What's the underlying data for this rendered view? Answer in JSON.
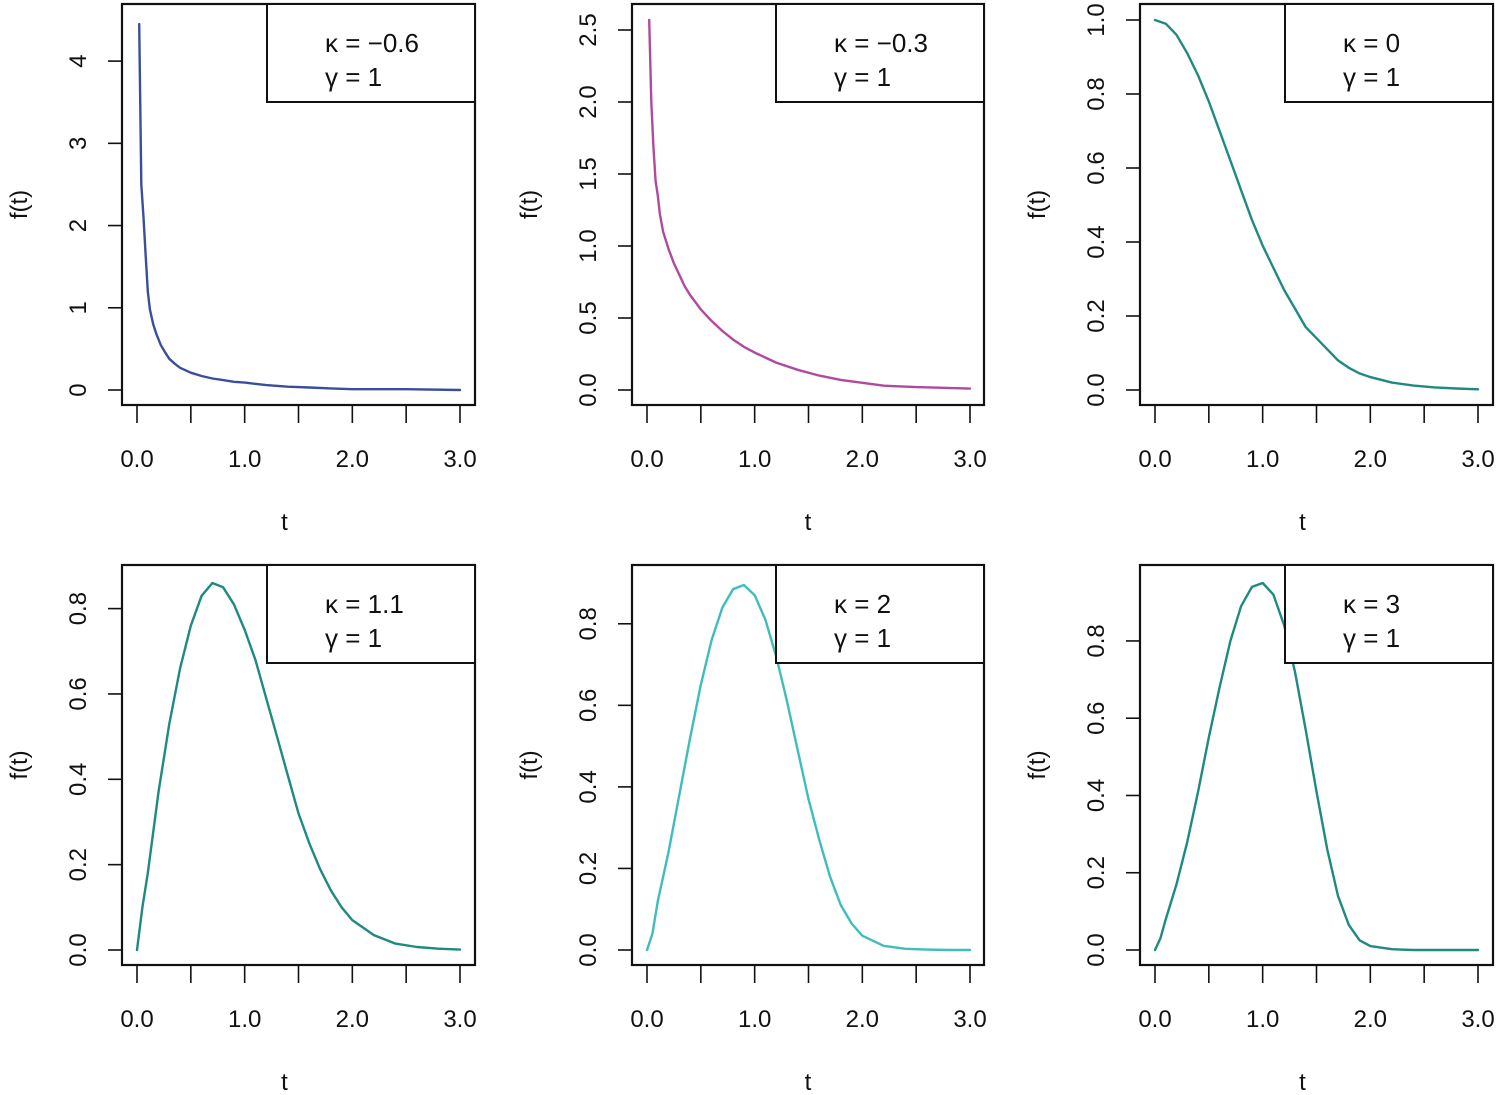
{
  "chart_data": [
    {
      "type": "line",
      "xlabel": "t",
      "ylabel": "f(t)",
      "xlim": [
        0,
        3
      ],
      "ylim": [
        0,
        4.5
      ],
      "xticks": [
        "0.0",
        "1.0",
        "2.0",
        "3.0"
      ],
      "yticks": [
        "0",
        "1",
        "2",
        "3",
        "4"
      ],
      "legend": [
        "κ = −0.6",
        "γ = 1"
      ],
      "legend_position": "top-right",
      "color": "#3a4f9c",
      "series": [
        {
          "x": [
            0.02,
            0.04,
            0.06,
            0.08,
            0.1,
            0.12,
            0.15,
            0.18,
            0.22,
            0.26,
            0.3,
            0.35,
            0.4,
            0.5,
            0.6,
            0.7,
            0.8,
            0.9,
            1.0,
            1.2,
            1.4,
            1.6,
            1.8,
            2.0,
            2.5,
            3.0
          ],
          "y": [
            4.45,
            2.5,
            2.1,
            1.65,
            1.2,
            0.98,
            0.8,
            0.68,
            0.55,
            0.46,
            0.38,
            0.32,
            0.27,
            0.21,
            0.17,
            0.14,
            0.12,
            0.1,
            0.09,
            0.06,
            0.04,
            0.03,
            0.02,
            0.01,
            0.01,
            0.0
          ]
        }
      ]
    },
    {
      "type": "line",
      "xlabel": "t",
      "ylabel": "f(t)",
      "xlim": [
        0,
        3
      ],
      "ylim": [
        0,
        2.5
      ],
      "xticks": [
        "0.0",
        "1.0",
        "2.0",
        "3.0"
      ],
      "yticks": [
        "0.0",
        "0.5",
        "1.0",
        "1.5",
        "2.0",
        "2.5"
      ],
      "legend": [
        "κ = −0.3",
        "γ = 1"
      ],
      "legend_position": "top-right",
      "color": "#b04a9e",
      "series": [
        {
          "x": [
            0.02,
            0.04,
            0.06,
            0.08,
            0.1,
            0.12,
            0.15,
            0.2,
            0.25,
            0.3,
            0.35,
            0.4,
            0.5,
            0.6,
            0.7,
            0.8,
            0.9,
            1.0,
            1.2,
            1.4,
            1.6,
            1.8,
            2.0,
            2.2,
            2.5,
            3.0
          ],
          "y": [
            2.57,
            2.0,
            1.68,
            1.45,
            1.35,
            1.22,
            1.1,
            0.98,
            0.88,
            0.8,
            0.72,
            0.66,
            0.56,
            0.48,
            0.41,
            0.35,
            0.3,
            0.26,
            0.19,
            0.14,
            0.1,
            0.07,
            0.05,
            0.03,
            0.02,
            0.01
          ]
        }
      ]
    },
    {
      "type": "line",
      "xlabel": "t",
      "ylabel": "f(t)",
      "xlim": [
        0,
        3
      ],
      "ylim": [
        0,
        1
      ],
      "xticks": [
        "0.0",
        "1.0",
        "2.0",
        "3.0"
      ],
      "yticks": [
        "0.0",
        "0.2",
        "0.4",
        "0.6",
        "0.8",
        "1.0"
      ],
      "legend": [
        "κ = 0",
        "γ = 1"
      ],
      "legend_position": "top-right",
      "color": "#1f8a80",
      "series": [
        {
          "x": [
            0.0,
            0.1,
            0.2,
            0.3,
            0.4,
            0.5,
            0.6,
            0.7,
            0.8,
            0.9,
            1.0,
            1.1,
            1.2,
            1.3,
            1.4,
            1.5,
            1.6,
            1.7,
            1.8,
            1.9,
            2.0,
            2.2,
            2.4,
            2.6,
            2.8,
            3.0
          ],
          "y": [
            1.0,
            0.99,
            0.96,
            0.91,
            0.85,
            0.78,
            0.7,
            0.62,
            0.54,
            0.46,
            0.39,
            0.33,
            0.27,
            0.22,
            0.17,
            0.14,
            0.11,
            0.08,
            0.06,
            0.045,
            0.035,
            0.02,
            0.012,
            0.007,
            0.004,
            0.002
          ]
        }
      ]
    },
    {
      "type": "line",
      "xlabel": "t",
      "ylabel": "f(t)",
      "xlim": [
        0,
        3
      ],
      "ylim": [
        0,
        0.86
      ],
      "xticks": [
        "0.0",
        "1.0",
        "2.0",
        "3.0"
      ],
      "yticks": [
        "0.0",
        "0.2",
        "0.4",
        "0.6",
        "0.8"
      ],
      "legend": [
        "κ = 1.1",
        "γ = 1"
      ],
      "legend_position": "top-right",
      "color": "#1f8a80",
      "series": [
        {
          "x": [
            0.0,
            0.05,
            0.1,
            0.2,
            0.3,
            0.4,
            0.5,
            0.6,
            0.7,
            0.8,
            0.9,
            1.0,
            1.1,
            1.2,
            1.3,
            1.4,
            1.5,
            1.6,
            1.7,
            1.8,
            1.9,
            2.0,
            2.2,
            2.4,
            2.6,
            2.8,
            3.0
          ],
          "y": [
            0.0,
            0.1,
            0.18,
            0.37,
            0.53,
            0.66,
            0.76,
            0.83,
            0.86,
            0.85,
            0.81,
            0.75,
            0.68,
            0.59,
            0.5,
            0.41,
            0.32,
            0.25,
            0.19,
            0.14,
            0.1,
            0.07,
            0.035,
            0.015,
            0.007,
            0.003,
            0.001
          ]
        }
      ]
    },
    {
      "type": "line",
      "xlabel": "t",
      "ylabel": "f(t)",
      "xlim": [
        0,
        3
      ],
      "ylim": [
        0,
        0.9
      ],
      "xticks": [
        "0.0",
        "1.0",
        "2.0",
        "3.0"
      ],
      "yticks": [
        "0.0",
        "0.2",
        "0.4",
        "0.6",
        "0.8"
      ],
      "legend": [
        "κ = 2",
        "γ = 1"
      ],
      "legend_position": "top-right",
      "color": "#3fbdbd",
      "series": [
        {
          "x": [
            0.0,
            0.05,
            0.1,
            0.2,
            0.3,
            0.4,
            0.5,
            0.6,
            0.7,
            0.8,
            0.9,
            1.0,
            1.1,
            1.2,
            1.3,
            1.4,
            1.5,
            1.6,
            1.7,
            1.8,
            1.9,
            2.0,
            2.2,
            2.4,
            2.6,
            2.8,
            3.0
          ],
          "y": [
            0.0,
            0.04,
            0.12,
            0.24,
            0.38,
            0.52,
            0.65,
            0.76,
            0.84,
            0.885,
            0.895,
            0.87,
            0.81,
            0.72,
            0.61,
            0.49,
            0.37,
            0.27,
            0.18,
            0.11,
            0.065,
            0.035,
            0.01,
            0.003,
            0.001,
            0.0,
            0.0
          ]
        }
      ]
    },
    {
      "type": "line",
      "xlabel": "t",
      "ylabel": "f(t)",
      "xlim": [
        0,
        3
      ],
      "ylim": [
        0,
        0.95
      ],
      "xticks": [
        "0.0",
        "1.0",
        "2.0",
        "3.0"
      ],
      "yticks": [
        "0.0",
        "0.2",
        "0.4",
        "0.6",
        "0.8"
      ],
      "legend": [
        "κ = 3",
        "γ = 1"
      ],
      "legend_position": "top-right",
      "color": "#1f8a80",
      "series": [
        {
          "x": [
            0.0,
            0.05,
            0.1,
            0.2,
            0.3,
            0.4,
            0.5,
            0.6,
            0.7,
            0.8,
            0.9,
            1.0,
            1.1,
            1.2,
            1.3,
            1.4,
            1.5,
            1.6,
            1.7,
            1.8,
            1.9,
            2.0,
            2.2,
            2.4,
            2.6,
            2.8,
            3.0
          ],
          "y": [
            0.0,
            0.03,
            0.08,
            0.17,
            0.28,
            0.41,
            0.55,
            0.68,
            0.8,
            0.89,
            0.94,
            0.95,
            0.92,
            0.84,
            0.72,
            0.57,
            0.41,
            0.26,
            0.14,
            0.065,
            0.025,
            0.01,
            0.002,
            0.0,
            0.0,
            0.0,
            0.0
          ]
        }
      ]
    }
  ]
}
